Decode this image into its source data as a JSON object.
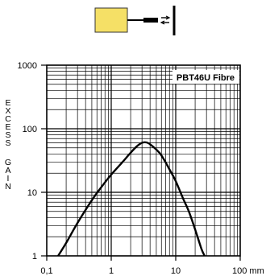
{
  "icon": {
    "sensor_color": "#f5e066",
    "name": "fibre-sensor-target-icon"
  },
  "chart_data": {
    "type": "line",
    "title": "PBT46U Fibre",
    "ylabel": "EXCESS GAIN",
    "xlabel": "",
    "x_unit": "mm",
    "xscale": "log",
    "yscale": "log",
    "xlim": [
      0.1,
      100
    ],
    "ylim": [
      1,
      1000
    ],
    "x_ticks": [
      {
        "value": 0.1,
        "label": "0,1"
      },
      {
        "value": 1,
        "label": "1"
      },
      {
        "value": 10,
        "label": "10"
      },
      {
        "value": 100,
        "label": "100 mm"
      }
    ],
    "y_ticks": [
      {
        "value": 1,
        "label": "1"
      },
      {
        "value": 10,
        "label": "10"
      },
      {
        "value": 100,
        "label": "100"
      },
      {
        "value": 1000,
        "label": "1000"
      }
    ],
    "grid": true,
    "legend": "top-right",
    "series": [
      {
        "x": [
          0.15,
          0.2,
          0.3,
          0.5,
          0.7,
          1.0,
          1.5,
          2.0,
          2.5,
          3.0,
          3.5,
          4.0,
          5.0,
          6.0,
          8.0,
          10.0,
          13.0,
          16.0,
          20.0,
          25.0,
          28.0
        ],
        "values": [
          1.0,
          1.6,
          3.3,
          7.5,
          12,
          19,
          30,
          42,
          53,
          60,
          61,
          57,
          47,
          38,
          23,
          15,
          8,
          5,
          2.6,
          1.3,
          1.0
        ]
      }
    ]
  }
}
